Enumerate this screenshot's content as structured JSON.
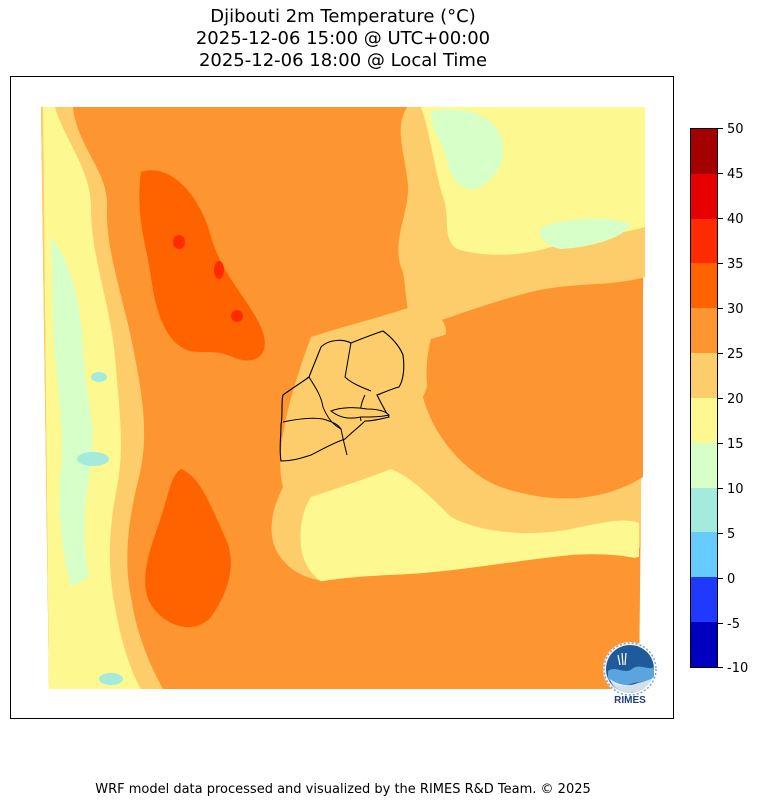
{
  "title": {
    "line1": "Djibouti 2m Temperature (°C)",
    "line2": "2025-12-06 15:00 @ UTC+00:00",
    "line3": "2025-12-06 18:00 @ Local Time"
  },
  "colorbar": {
    "ticks": [
      "50",
      "45",
      "40",
      "35",
      "30",
      "25",
      "20",
      "15",
      "10",
      "5",
      "0",
      "-5",
      "-10"
    ],
    "colors_top_to_bottom": [
      "#a50000",
      "#e60000",
      "#ff2b00",
      "#ff6300",
      "#fd9530",
      "#fdcc6b",
      "#fdf890",
      "#d7ffc8",
      "#a4eadd",
      "#66ccff",
      "#1f39ff",
      "#0000bf"
    ]
  },
  "logo": {
    "text": "RIMES",
    "icon": "rimes-globe-logo"
  },
  "footer": {
    "credit": "WRF model data processed and visualized by the RIMES R&D Team. © 2025"
  },
  "map": {
    "region": "Djibouti",
    "variable": "2m temperature",
    "units": "°C"
  }
}
